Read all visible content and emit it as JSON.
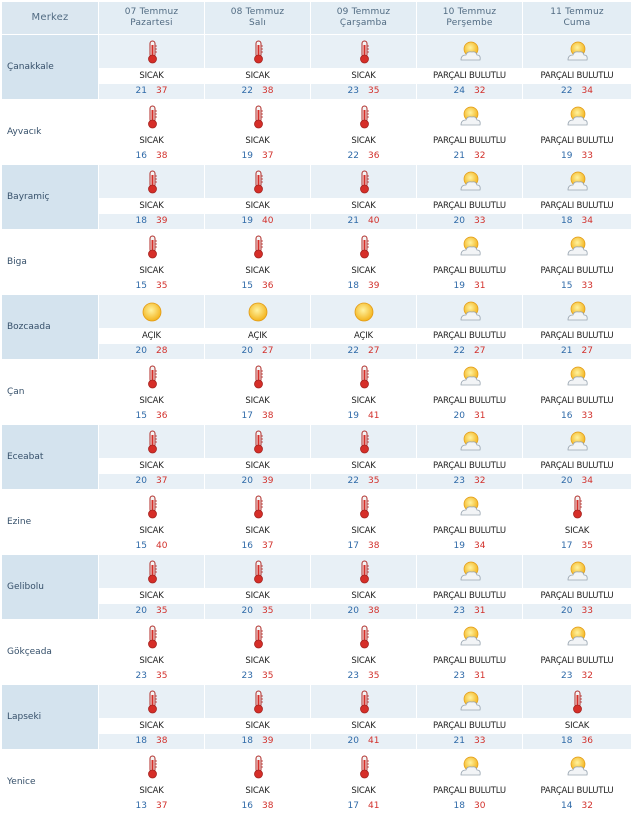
{
  "header": {
    "merkez_label": "Merkez",
    "days": [
      {
        "date": "07 Temmuz",
        "weekday": "Pazartesi"
      },
      {
        "date": "08 Temmuz",
        "weekday": "Salı"
      },
      {
        "date": "09 Temmuz",
        "weekday": "Çarşamba"
      },
      {
        "date": "10 Temmuz",
        "weekday": "Perşembe"
      },
      {
        "date": "11 Temmuz",
        "weekday": "Cuma"
      }
    ]
  },
  "colors": {
    "min_temp": "#2f6aa8",
    "max_temp": "#d2302b",
    "header_bg": "#e3edf4",
    "row_shade": "#e8f0f6"
  },
  "rows": [
    {
      "city": "Çanakkale",
      "days": [
        {
          "icon": "thermometer-icon",
          "cond": "SICAK",
          "min": "21",
          "max": "37"
        },
        {
          "icon": "thermometer-icon",
          "cond": "SICAK",
          "min": "22",
          "max": "38"
        },
        {
          "icon": "thermometer-icon",
          "cond": "SICAK",
          "min": "23",
          "max": "35"
        },
        {
          "icon": "partly-cloudy-icon",
          "cond": "PARÇALI BULUTLU",
          "min": "24",
          "max": "32"
        },
        {
          "icon": "partly-cloudy-icon",
          "cond": "PARÇALI BULUTLU",
          "min": "22",
          "max": "34"
        }
      ]
    },
    {
      "city": "Ayvacık",
      "days": [
        {
          "icon": "thermometer-icon",
          "cond": "SICAK",
          "min": "16",
          "max": "38"
        },
        {
          "icon": "thermometer-icon",
          "cond": "SICAK",
          "min": "19",
          "max": "37"
        },
        {
          "icon": "thermometer-icon",
          "cond": "SICAK",
          "min": "22",
          "max": "36"
        },
        {
          "icon": "partly-cloudy-icon",
          "cond": "PARÇALI BULUTLU",
          "min": "21",
          "max": "32"
        },
        {
          "icon": "partly-cloudy-icon",
          "cond": "PARÇALI BULUTLU",
          "min": "19",
          "max": "33"
        }
      ]
    },
    {
      "city": "Bayramiç",
      "days": [
        {
          "icon": "thermometer-icon",
          "cond": "SICAK",
          "min": "18",
          "max": "39"
        },
        {
          "icon": "thermometer-icon",
          "cond": "SICAK",
          "min": "19",
          "max": "40"
        },
        {
          "icon": "thermometer-icon",
          "cond": "SICAK",
          "min": "21",
          "max": "40"
        },
        {
          "icon": "partly-cloudy-icon",
          "cond": "PARÇALI BULUTLU",
          "min": "20",
          "max": "33"
        },
        {
          "icon": "partly-cloudy-icon",
          "cond": "PARÇALI BULUTLU",
          "min": "18",
          "max": "34"
        }
      ]
    },
    {
      "city": "Biga",
      "days": [
        {
          "icon": "thermometer-icon",
          "cond": "SICAK",
          "min": "15",
          "max": "35"
        },
        {
          "icon": "thermometer-icon",
          "cond": "SICAK",
          "min": "15",
          "max": "36"
        },
        {
          "icon": "thermometer-icon",
          "cond": "SICAK",
          "min": "18",
          "max": "39"
        },
        {
          "icon": "partly-cloudy-icon",
          "cond": "PARÇALI BULUTLU",
          "min": "19",
          "max": "31"
        },
        {
          "icon": "partly-cloudy-icon",
          "cond": "PARÇALI BULUTLU",
          "min": "15",
          "max": "33"
        }
      ]
    },
    {
      "city": "Bozcaada",
      "days": [
        {
          "icon": "sun-icon",
          "cond": "AÇIK",
          "min": "20",
          "max": "28"
        },
        {
          "icon": "sun-icon",
          "cond": "AÇIK",
          "min": "20",
          "max": "27"
        },
        {
          "icon": "sun-icon",
          "cond": "AÇIK",
          "min": "22",
          "max": "27"
        },
        {
          "icon": "partly-cloudy-icon",
          "cond": "PARÇALI BULUTLU",
          "min": "22",
          "max": "27"
        },
        {
          "icon": "partly-cloudy-icon",
          "cond": "PARÇALI BULUTLU",
          "min": "21",
          "max": "27"
        }
      ]
    },
    {
      "city": "Çan",
      "days": [
        {
          "icon": "thermometer-icon",
          "cond": "SICAK",
          "min": "15",
          "max": "36"
        },
        {
          "icon": "thermometer-icon",
          "cond": "SICAK",
          "min": "17",
          "max": "38"
        },
        {
          "icon": "thermometer-icon",
          "cond": "SICAK",
          "min": "19",
          "max": "41"
        },
        {
          "icon": "partly-cloudy-icon",
          "cond": "PARÇALI BULUTLU",
          "min": "20",
          "max": "31"
        },
        {
          "icon": "partly-cloudy-icon",
          "cond": "PARÇALI BULUTLU",
          "min": "16",
          "max": "33"
        }
      ]
    },
    {
      "city": "Eceabat",
      "days": [
        {
          "icon": "thermometer-icon",
          "cond": "SICAK",
          "min": "20",
          "max": "37"
        },
        {
          "icon": "thermometer-icon",
          "cond": "SICAK",
          "min": "20",
          "max": "39"
        },
        {
          "icon": "thermometer-icon",
          "cond": "SICAK",
          "min": "22",
          "max": "35"
        },
        {
          "icon": "partly-cloudy-icon",
          "cond": "PARÇALI BULUTLU",
          "min": "23",
          "max": "32"
        },
        {
          "icon": "partly-cloudy-icon",
          "cond": "PARÇALI BULUTLU",
          "min": "20",
          "max": "34"
        }
      ]
    },
    {
      "city": "Ezine",
      "days": [
        {
          "icon": "thermometer-icon",
          "cond": "SICAK",
          "min": "15",
          "max": "40"
        },
        {
          "icon": "thermometer-icon",
          "cond": "SICAK",
          "min": "16",
          "max": "37"
        },
        {
          "icon": "thermometer-icon",
          "cond": "SICAK",
          "min": "17",
          "max": "38"
        },
        {
          "icon": "partly-cloudy-icon",
          "cond": "PARÇALI BULUTLU",
          "min": "19",
          "max": "34"
        },
        {
          "icon": "thermometer-icon",
          "cond": "SICAK",
          "min": "17",
          "max": "35"
        }
      ]
    },
    {
      "city": "Gelibolu",
      "days": [
        {
          "icon": "thermometer-icon",
          "cond": "SICAK",
          "min": "20",
          "max": "35"
        },
        {
          "icon": "thermometer-icon",
          "cond": "SICAK",
          "min": "20",
          "max": "35"
        },
        {
          "icon": "thermometer-icon",
          "cond": "SICAK",
          "min": "20",
          "max": "38"
        },
        {
          "icon": "partly-cloudy-icon",
          "cond": "PARÇALI BULUTLU",
          "min": "23",
          "max": "31"
        },
        {
          "icon": "partly-cloudy-icon",
          "cond": "PARÇALI BULUTLU",
          "min": "20",
          "max": "33"
        }
      ]
    },
    {
      "city": "Gökçeada",
      "days": [
        {
          "icon": "thermometer-icon",
          "cond": "SICAK",
          "min": "23",
          "max": "35"
        },
        {
          "icon": "thermometer-icon",
          "cond": "SICAK",
          "min": "23",
          "max": "35"
        },
        {
          "icon": "thermometer-icon",
          "cond": "SICAK",
          "min": "23",
          "max": "35"
        },
        {
          "icon": "partly-cloudy-icon",
          "cond": "PARÇALI BULUTLU",
          "min": "23",
          "max": "31"
        },
        {
          "icon": "partly-cloudy-icon",
          "cond": "PARÇALI BULUTLU",
          "min": "23",
          "max": "32"
        }
      ]
    },
    {
      "city": "Lapseki",
      "days": [
        {
          "icon": "thermometer-icon",
          "cond": "SICAK",
          "min": "18",
          "max": "38"
        },
        {
          "icon": "thermometer-icon",
          "cond": "SICAK",
          "min": "18",
          "max": "39"
        },
        {
          "icon": "thermometer-icon",
          "cond": "SICAK",
          "min": "20",
          "max": "41"
        },
        {
          "icon": "partly-cloudy-icon",
          "cond": "PARÇALI BULUTLU",
          "min": "21",
          "max": "33"
        },
        {
          "icon": "thermometer-icon",
          "cond": "SICAK",
          "min": "18",
          "max": "36"
        }
      ]
    },
    {
      "city": "Yenice",
      "days": [
        {
          "icon": "thermometer-icon",
          "cond": "SICAK",
          "min": "13",
          "max": "37"
        },
        {
          "icon": "thermometer-icon",
          "cond": "SICAK",
          "min": "16",
          "max": "38"
        },
        {
          "icon": "thermometer-icon",
          "cond": "SICAK",
          "min": "17",
          "max": "41"
        },
        {
          "icon": "partly-cloudy-icon",
          "cond": "PARÇALI BULUTLU",
          "min": "18",
          "max": "30"
        },
        {
          "icon": "partly-cloudy-icon",
          "cond": "PARÇALI BULUTLU",
          "min": "14",
          "max": "32"
        }
      ]
    }
  ]
}
